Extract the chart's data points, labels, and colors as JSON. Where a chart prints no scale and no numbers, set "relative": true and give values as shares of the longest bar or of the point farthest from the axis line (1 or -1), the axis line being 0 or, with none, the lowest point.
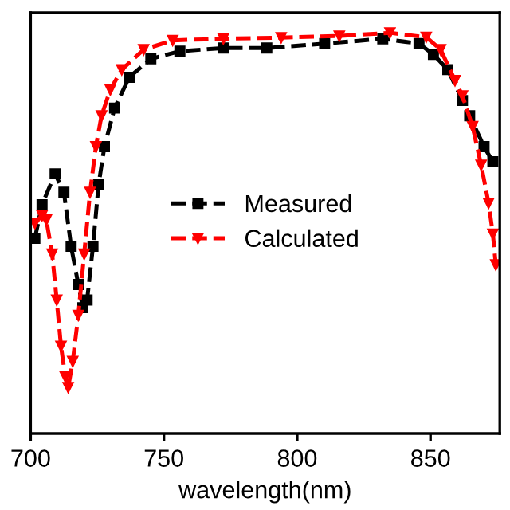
{
  "chart_data": {
    "type": "line",
    "relative": true,
    "xlabel": "wavelength(nm)",
    "xlim": [
      700,
      876
    ],
    "xticks": [
      700,
      750,
      800,
      850
    ],
    "legend": "center",
    "grid": false,
    "line_style": "dashed",
    "series": [
      {
        "name": "Measured",
        "color": "#000000",
        "marker": "square",
        "x": [
          701.6,
          704.3,
          709.2,
          712.5,
          715.2,
          717.9,
          719.6,
          721.2,
          723.4,
          725.5,
          727.7,
          731.5,
          737,
          745.1,
          756,
          772.3,
          788.6,
          810.3,
          832.1,
          845.7,
          851.1,
          856.5,
          862,
          864.7,
          870.1,
          873.4
        ],
        "values": [
          0.487,
          0.571,
          0.648,
          0.602,
          0.467,
          0.372,
          0.314,
          0.333,
          0.467,
          0.621,
          0.716,
          0.812,
          0.889,
          0.935,
          0.954,
          0.962,
          0.962,
          0.973,
          0.985,
          0.973,
          0.946,
          0.908,
          0.831,
          0.793,
          0.716,
          0.678
        ]
      },
      {
        "name": "Calculated",
        "color": "#ff0000",
        "marker": "triangle_down",
        "x": [
          701.6,
          704.3,
          705.9,
          708.1,
          709.8,
          711.4,
          713.0,
          714.1,
          715.8,
          717.9,
          720.1,
          722.3,
          724.5,
          726.6,
          729.9,
          734.2,
          742.4,
          753.3,
          772.3,
          794.0,
          815.8,
          834.8,
          848.4,
          853.8,
          859.2,
          862.0,
          865.8,
          869.0,
          871.8,
          873.4,
          874.5
        ],
        "values": [
          0.525,
          0.544,
          0.533,
          0.448,
          0.333,
          0.218,
          0.142,
          0.115,
          0.18,
          0.295,
          0.448,
          0.602,
          0.716,
          0.793,
          0.858,
          0.908,
          0.958,
          0.981,
          0.985,
          0.988,
          0.992,
          1.0,
          0.989,
          0.958,
          0.881,
          0.843,
          0.766,
          0.67,
          0.575,
          0.498,
          0.421
        ]
      }
    ]
  }
}
